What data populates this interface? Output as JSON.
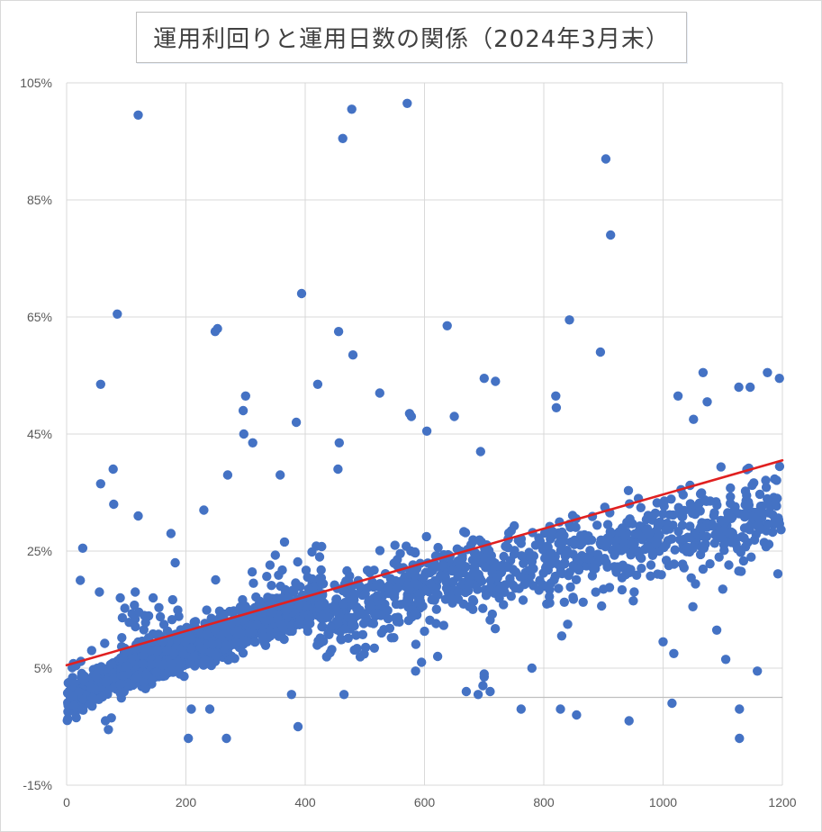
{
  "chart_data": {
    "type": "scatter",
    "title": "運用利回りと運用日数の関係（2024年3月末）",
    "xlabel": "",
    "ylabel": "",
    "xlim": [
      0,
      1200
    ],
    "ylim": [
      -15,
      105
    ],
    "x_ticks": [
      "0",
      "200",
      "400",
      "600",
      "800",
      "1000",
      "1200"
    ],
    "y_ticks": [
      "105%",
      "85%",
      "65%",
      "45%",
      "25%",
      "5%",
      "-15%"
    ],
    "grid": true,
    "point_color": "#4472C4",
    "trendline": {
      "color": "#E02020",
      "x": [
        0,
        1200
      ],
      "y": [
        5.5,
        40.5
      ]
    },
    "outliers": [
      [
        120,
        99.5
      ],
      [
        478,
        100.5
      ],
      [
        571,
        101.5
      ],
      [
        463,
        95.5
      ],
      [
        904,
        92
      ],
      [
        912,
        79
      ],
      [
        394,
        69
      ],
      [
        85,
        65.5
      ],
      [
        253,
        63
      ],
      [
        249,
        62.5
      ],
      [
        456,
        62.5
      ],
      [
        638,
        63.5
      ],
      [
        843,
        64.5
      ],
      [
        480,
        58.5
      ],
      [
        895,
        59
      ],
      [
        57,
        53.5
      ],
      [
        421,
        53.5
      ],
      [
        525,
        52
      ],
      [
        300,
        51.5
      ],
      [
        296,
        49
      ],
      [
        575,
        48.5
      ],
      [
        578,
        48
      ],
      [
        385,
        47
      ],
      [
        604,
        45.5
      ],
      [
        650,
        48
      ],
      [
        297,
        45
      ],
      [
        312,
        43.5
      ],
      [
        457,
        43.5
      ],
      [
        1175,
        55.5
      ],
      [
        1195,
        54.5
      ],
      [
        1067,
        55.5
      ],
      [
        1127,
        53
      ],
      [
        1146,
        53
      ],
      [
        1025,
        51.5
      ],
      [
        1051,
        47.5
      ],
      [
        1074,
        50.5
      ],
      [
        820,
        51.5
      ],
      [
        821,
        49.5
      ],
      [
        78,
        39
      ],
      [
        57,
        36.5
      ],
      [
        79,
        33
      ],
      [
        120,
        31
      ],
      [
        175,
        28
      ],
      [
        230,
        32
      ],
      [
        270,
        38
      ],
      [
        358,
        38
      ],
      [
        455,
        39
      ],
      [
        27,
        25.5
      ],
      [
        23,
        20
      ],
      [
        55,
        18
      ],
      [
        90,
        17
      ],
      [
        115,
        18
      ],
      [
        145,
        17
      ],
      [
        182,
        23
      ],
      [
        168,
        8
      ],
      [
        245,
        13
      ],
      [
        700,
        54.5
      ],
      [
        719,
        54
      ],
      [
        694,
        42
      ],
      [
        943,
        -4
      ],
      [
        855,
        -3
      ],
      [
        828,
        -2
      ],
      [
        762,
        -2
      ],
      [
        1015,
        -1
      ],
      [
        1128,
        -2
      ],
      [
        1128,
        -7
      ],
      [
        1158,
        4.5
      ],
      [
        204,
        -7
      ],
      [
        268,
        -7
      ],
      [
        240,
        -2
      ],
      [
        209,
        -2
      ],
      [
        388,
        -5
      ],
      [
        75,
        -3.5
      ],
      [
        70,
        -5.5
      ],
      [
        65,
        -4
      ],
      [
        377,
        0.5
      ],
      [
        465,
        0.5
      ],
      [
        690,
        0.5
      ],
      [
        698,
        2
      ],
      [
        700,
        3.5
      ],
      [
        710,
        1
      ],
      [
        670,
        1
      ],
      [
        585,
        4.5
      ],
      [
        595,
        6
      ],
      [
        622,
        7
      ],
      [
        700,
        4
      ],
      [
        780,
        5
      ],
      [
        830,
        10.5
      ],
      [
        840,
        12.5
      ],
      [
        1000,
        9.5
      ],
      [
        1018,
        7.5
      ],
      [
        1090,
        11.5
      ],
      [
        1105,
        6.5
      ],
      [
        1050,
        15.5
      ],
      [
        1100,
        18.5
      ],
      [
        950,
        16.5
      ],
      [
        900,
        18.5
      ]
    ]
  }
}
